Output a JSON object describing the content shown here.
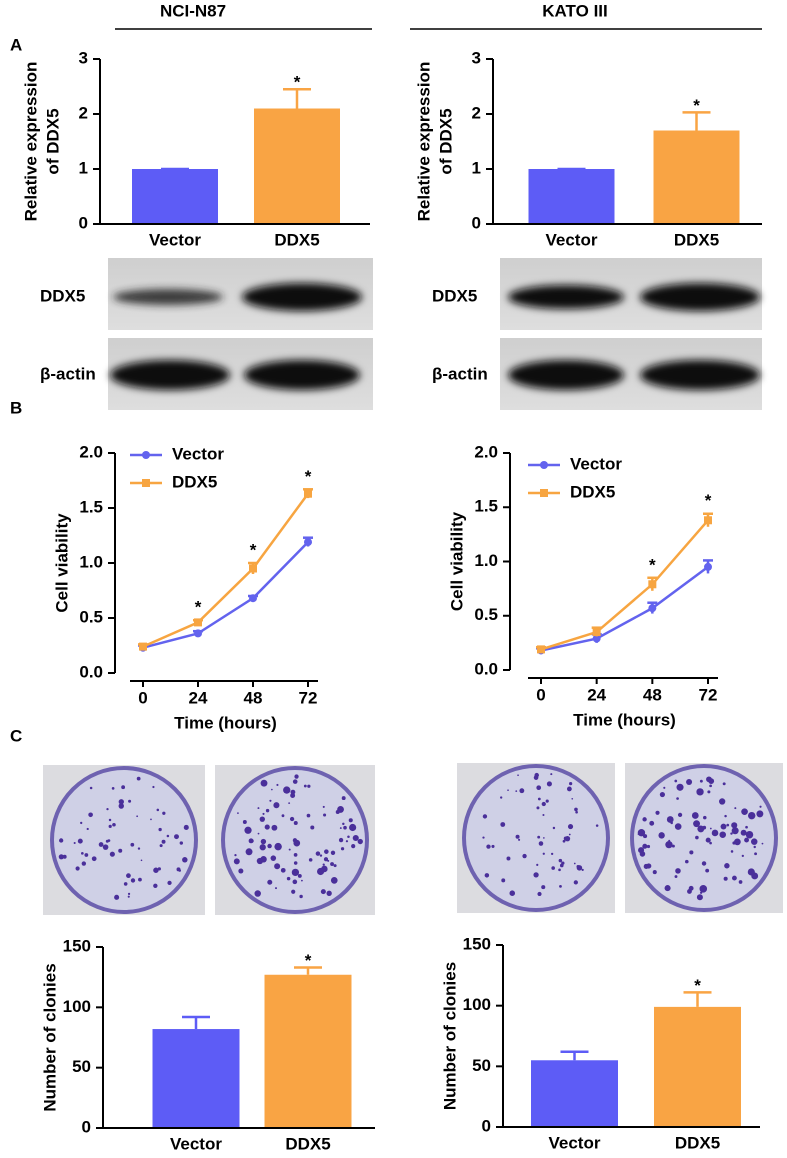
{
  "headers": [
    "NCI-N87",
    "KATO III"
  ],
  "panel_labels": [
    "A",
    "B",
    "C"
  ],
  "blots": [
    {
      "labels": [
        "DDX5",
        "β-actin"
      ]
    },
    {
      "labels": [
        "DDX5",
        "β-actin"
      ]
    }
  ],
  "chart_data": [
    {
      "type": "bar",
      "ylabel": [
        "Relative expression",
        "of DDX5"
      ],
      "categories": [
        "Vector",
        "DDX5"
      ],
      "values": [
        1.0,
        2.1
      ],
      "errors": [
        0,
        0.35
      ],
      "colors": [
        "#5d5cf6",
        "#f9a444"
      ],
      "ylim": [
        0,
        3
      ],
      "yticks": [
        0,
        1,
        2,
        3
      ],
      "annotations": [
        null,
        "*"
      ]
    },
    {
      "type": "bar",
      "ylabel": [
        "Relative expression",
        "of DDX5"
      ],
      "categories": [
        "Vector",
        "DDX5"
      ],
      "values": [
        1.0,
        1.7
      ],
      "errors": [
        0,
        0.33
      ],
      "colors": [
        "#5d5cf6",
        "#f9a444"
      ],
      "ylim": [
        0,
        3
      ],
      "yticks": [
        0,
        1,
        2,
        3
      ],
      "annotations": [
        null,
        "*"
      ]
    },
    {
      "type": "line",
      "xlabel": "Time (hours)",
      "ylabel": "Cell viability",
      "x": [
        0,
        24,
        48,
        72
      ],
      "series": [
        {
          "name": "Vector",
          "color": "#6363ee",
          "marker": "circle",
          "values": [
            0.23,
            0.36,
            0.68,
            1.19
          ],
          "errors": [
            0.02,
            0.02,
            0.02,
            0.04
          ]
        },
        {
          "name": "DDX5",
          "color": "#f7a541",
          "marker": "square",
          "values": [
            0.24,
            0.46,
            0.95,
            1.63
          ],
          "errors": [
            0.02,
            0.02,
            0.05,
            0.04
          ]
        }
      ],
      "xlim": [
        0,
        72
      ],
      "xticks": [
        0,
        24,
        48,
        72
      ],
      "ylim": [
        0,
        2
      ],
      "yticks": [
        {
          "value": 0,
          "label": "0.0"
        },
        0.5,
        {
          "value": 1,
          "label": "1.0"
        },
        1.5,
        {
          "value": 2,
          "label": "2.0"
        }
      ],
      "annotations": [
        null,
        "*",
        "*",
        "*"
      ],
      "legend": "upper left"
    },
    {
      "type": "line",
      "xlabel": "Time (hours)",
      "ylabel": "Cell viability",
      "x": [
        0,
        24,
        48,
        72
      ],
      "series": [
        {
          "name": "Vector",
          "color": "#6363ee",
          "marker": "circle",
          "values": [
            0.18,
            0.29,
            0.57,
            0.95
          ],
          "errors": [
            0.02,
            0.04,
            0.05,
            0.06
          ]
        },
        {
          "name": "DDX5",
          "color": "#f7a541",
          "marker": "square",
          "values": [
            0.19,
            0.35,
            0.79,
            1.38
          ],
          "errors": [
            0.02,
            0.04,
            0.06,
            0.06
          ]
        }
      ],
      "xlim": [
        0,
        72
      ],
      "xticks": [
        0,
        24,
        48,
        72
      ],
      "ylim": [
        0,
        2
      ],
      "yticks": [
        {
          "value": 0,
          "label": "0.0"
        },
        0.5,
        {
          "value": 1,
          "label": "1.0"
        },
        1.5,
        {
          "value": 2,
          "label": "2.0"
        }
      ],
      "annotations": [
        null,
        null,
        "*",
        "*"
      ],
      "legend": "upper left"
    },
    {
      "type": "bar",
      "ylabel": "Number of clonies",
      "categories": [
        "Vector",
        "DDX5"
      ],
      "values": [
        82,
        127
      ],
      "errors": [
        10,
        6
      ],
      "colors": [
        "#5d5cf6",
        "#f9a444"
      ],
      "ylim": [
        0,
        150
      ],
      "yticks": [
        0,
        50,
        100,
        150
      ],
      "annotations": [
        null,
        "*"
      ]
    },
    {
      "type": "bar",
      "ylabel": "Number of clonies",
      "categories": [
        "Vector",
        "DDX5"
      ],
      "values": [
        55,
        99
      ],
      "errors": [
        7,
        12
      ],
      "colors": [
        "#5d5cf6",
        "#f9a444"
      ],
      "ylim": [
        0,
        150
      ],
      "yticks": [
        0,
        50,
        100,
        150
      ],
      "annotations": [
        null,
        "*"
      ]
    }
  ]
}
